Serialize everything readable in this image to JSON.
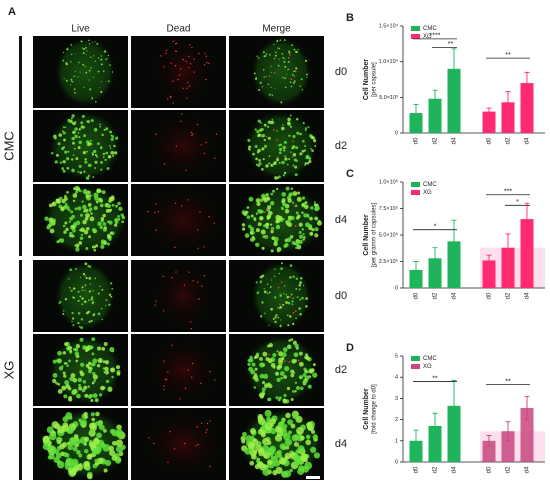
{
  "figure": {
    "panel": "A",
    "columns": [
      "Live",
      "Dead",
      "Merge"
    ],
    "groups": [
      {
        "name": "CMC",
        "rows": [
          "d0",
          "d2",
          "d4"
        ]
      },
      {
        "name": "XG",
        "rows": [
          "d0",
          "d2",
          "d4"
        ]
      }
    ]
  },
  "chart_data": [
    {
      "type": "bar",
      "panel": "B",
      "ylabel": [
        "Cell Number",
        "[per capsule]"
      ],
      "categories": [
        "d0",
        "d2",
        "d4"
      ],
      "series": [
        {
          "name": "CMC",
          "color": "#1fb35c",
          "values": [
            2800,
            4800,
            9000
          ],
          "errors": [
            1200,
            1200,
            2800
          ]
        },
        {
          "name": "XG",
          "color": "#ff2a70",
          "values": [
            3000,
            4300,
            7000
          ],
          "errors": [
            500,
            1500,
            1500
          ]
        }
      ],
      "ylim": [
        0,
        15000
      ],
      "yticks": [
        0,
        {
          "value": 5000,
          "label": "5.0×10³"
        },
        {
          "value": 10000,
          "label": "1.0×10⁴"
        },
        {
          "value": 15000,
          "label": "1.5×10⁴"
        }
      ],
      "annotations": [
        "****",
        "**",
        "**"
      ]
    },
    {
      "type": "bar",
      "panel": "C",
      "ylabel": [
        "Cell Number",
        "[per gramm of capsules]"
      ],
      "categories": [
        "d0",
        "d2",
        "d4"
      ],
      "series": [
        {
          "name": "CMC",
          "color": "#1fb35c",
          "values": [
            170000,
            280000,
            440000
          ],
          "errors": [
            80000,
            100000,
            200000
          ]
        },
        {
          "name": "XG",
          "color": "#ff2a70",
          "values": [
            260000,
            380000,
            650000
          ],
          "errors": [
            50000,
            130000,
            150000
          ]
        }
      ],
      "ylim": [
        0,
        1000000
      ],
      "yticks": [
        0,
        {
          "value": 250000,
          "label": "2.5×10⁵"
        },
        {
          "value": 500000,
          "label": "5.0×10⁵"
        },
        {
          "value": 750000,
          "label": "7.5×10⁵"
        },
        {
          "value": 1000000,
          "label": "1.0×10⁶"
        }
      ],
      "annotations": [
        "*",
        "***",
        "*"
      ]
    },
    {
      "type": "bar",
      "panel": "D",
      "ylabel": [
        "Cell Number",
        "[fold change to d0]"
      ],
      "categories": [
        "d0",
        "d2",
        "d4"
      ],
      "series": [
        {
          "name": "CMC",
          "color": "#1fb35c",
          "values": [
            1,
            1.7,
            2.65
          ],
          "errors": [
            0.5,
            0.6,
            1.2
          ]
        },
        {
          "name": "XG",
          "color": "#c8457e",
          "values": [
            1,
            1.45,
            2.55
          ],
          "errors": [
            0.25,
            0.45,
            0.55
          ]
        }
      ],
      "ylim": [
        0,
        5
      ],
      "yticks": [
        0,
        1,
        2,
        3,
        4,
        5
      ],
      "annotations": [
        "**",
        "**"
      ]
    }
  ]
}
